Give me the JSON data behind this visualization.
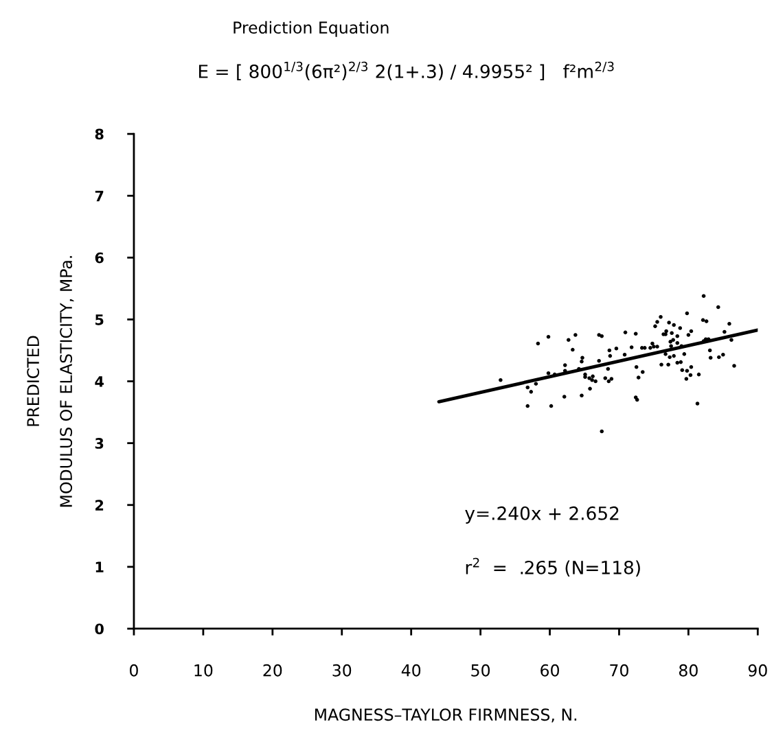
{
  "chart_data": {
    "type": "scatter",
    "title": "Prediction Equation",
    "subtitle": "E = [ 800$^{1/3}$(6π²)$^{2/3}$ 2(1+.3) / 4.9955² ]   f²m$^{2/3}$",
    "xlabel": "MAGNESS–TAYLOR FIRMNESS, N.",
    "ylabel": "PREDICTED\nMODULUS OF ELASTICITY, MPa.",
    "xlim": [
      0,
      90
    ],
    "ylim": [
      0,
      8
    ],
    "xticks": [
      0,
      10,
      20,
      30,
      40,
      50,
      60,
      70,
      80,
      90
    ],
    "yticks": [
      0,
      1,
      2,
      3,
      4,
      5,
      6,
      7,
      8
    ],
    "grid": false,
    "marker": "circle",
    "annotations": [
      "y=.240x + 2.652",
      "r$^{2}$  =  .265 (N=118)"
    ],
    "series": [
      {
        "color": "#000000",
        "x": [
          52.9,
          58.3,
          59.8,
          62.7,
          56.8,
          57.3,
          58.0,
          56.8,
          60.2,
          59.8,
          60.7,
          62.2,
          62.2,
          62.1,
          63.7,
          63.3,
          64.7,
          64.6,
          64.2,
          65.1,
          65.1,
          65.7,
          66.2,
          66.1,
          66.6,
          65.8,
          64.6,
          67.5,
          67.1,
          67.1,
          67.5,
          68.0,
          68.5,
          68.9,
          68.4,
          68.6,
          68.7,
          69.6,
          70.8,
          70.9,
          71.8,
          72.4,
          72.5,
          73.4,
          72.8,
          72.4,
          72.6,
          73.3,
          73.7,
          74.5,
          74.8,
          75.0,
          75.5,
          75.2,
          75.5,
          76.0,
          76.1,
          76.4,
          76.7,
          76.8,
          76.7,
          77.1,
          77.3,
          77.9,
          77.2,
          77.9,
          77.4,
          77.6,
          77.8,
          78.4,
          78.4,
          77.5,
          78.8,
          79.0,
          79.4,
          78.4,
          78.9,
          79.1,
          79.8,
          80.4,
          80.3,
          79.7,
          81.5,
          81.3,
          79.8,
          80.0,
          80.4,
          82.2,
          82.1,
          82.6,
          82.2,
          82.5,
          82.9,
          83.1,
          83.2,
          84.4,
          85.0,
          84.3,
          85.2,
          85.9,
          86.2,
          86.6
        ],
        "values": [
          4.02,
          4.61,
          4.72,
          4.67,
          3.9,
          3.83,
          3.96,
          3.6,
          3.6,
          4.13,
          4.11,
          4.26,
          4.17,
          3.75,
          4.75,
          4.51,
          4.38,
          4.32,
          4.2,
          4.11,
          4.07,
          4.05,
          4.08,
          4.02,
          4.0,
          3.88,
          3.77,
          3.19,
          4.33,
          4.75,
          4.73,
          4.05,
          4.0,
          4.04,
          4.2,
          4.5,
          4.41,
          4.53,
          4.43,
          4.79,
          4.55,
          4.77,
          4.23,
          4.15,
          4.06,
          3.74,
          3.7,
          4.54,
          4.54,
          4.54,
          4.61,
          4.56,
          4.56,
          4.89,
          4.96,
          5.04,
          4.27,
          4.76,
          4.76,
          4.81,
          4.44,
          4.27,
          4.39,
          4.41,
          4.95,
          4.91,
          4.64,
          4.78,
          4.67,
          4.73,
          4.62,
          4.57,
          4.86,
          4.57,
          4.44,
          4.3,
          4.31,
          4.18,
          4.17,
          4.23,
          4.1,
          4.04,
          4.11,
          3.64,
          5.1,
          4.75,
          4.81,
          5.38,
          4.99,
          4.97,
          4.65,
          4.68,
          4.68,
          4.5,
          4.38,
          4.39,
          4.43,
          5.2,
          4.8,
          4.93,
          4.67,
          4.25
        ]
      },
      {
        "type": "line",
        "marker": "none",
        "color": "#000000",
        "x": [
          44,
          90
        ],
        "values": [
          3.67,
          4.83
        ]
      }
    ]
  }
}
